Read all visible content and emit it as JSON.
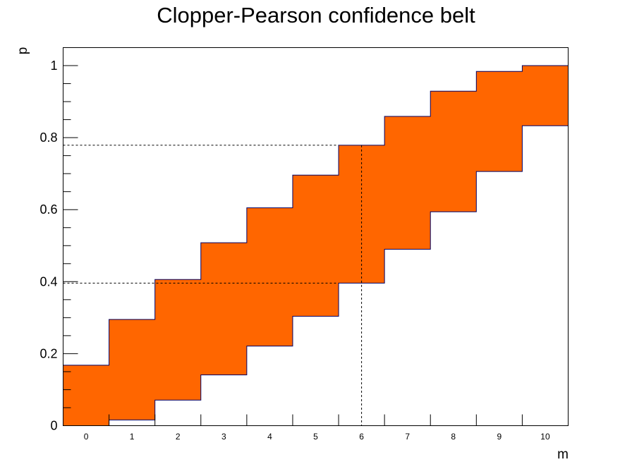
{
  "chart_data": {
    "type": "area",
    "title": "Clopper-Pearson confidence belt",
    "xlabel": "m",
    "ylabel": "p",
    "xlim": [
      -0.5,
      10.5
    ],
    "ylim": [
      0,
      1.05
    ],
    "x_tick_labels": [
      "0",
      "1",
      "2",
      "3",
      "4",
      "5",
      "6",
      "7",
      "8",
      "9",
      "10"
    ],
    "y_tick_labels": [
      "0",
      "0.2",
      "0.4",
      "0.6",
      "0.8",
      "1"
    ],
    "y_ticks": [
      0,
      0.2,
      0.4,
      0.6,
      0.8,
      1.0
    ],
    "grid": false,
    "fill_color": "#ff6600",
    "edge_color": "#000066",
    "series": [
      {
        "m": [
          0,
          1,
          2,
          3,
          4,
          5,
          6,
          7,
          8,
          9,
          10
        ],
        "lower": [
          0.0,
          0.016,
          0.071,
          0.141,
          0.221,
          0.304,
          0.396,
          0.49,
          0.594,
          0.706,
          0.833
        ],
        "upper": [
          0.168,
          0.295,
          0.406,
          0.508,
          0.605,
          0.696,
          0.779,
          0.859,
          0.929,
          0.984,
          1.0
        ]
      }
    ],
    "annotations": {
      "measured_m": 6,
      "interval": [
        0.396,
        0.779
      ]
    }
  }
}
